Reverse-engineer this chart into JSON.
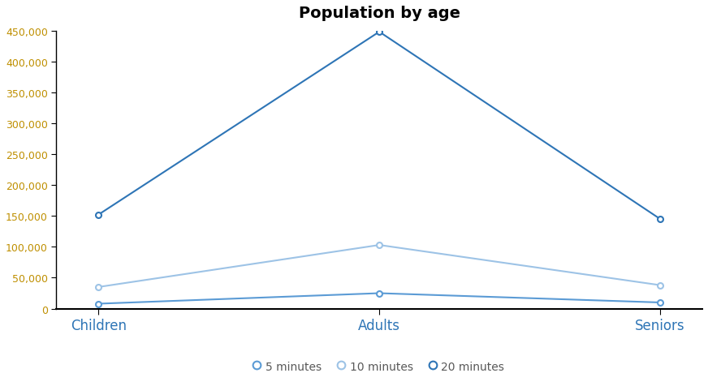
{
  "title": "Population by age",
  "categories": [
    "Children",
    "Adults",
    "Seniors"
  ],
  "series": [
    {
      "label": "5 minutes",
      "values": [
        8000,
        25000,
        10000
      ],
      "color": "#5b9bd5",
      "marker_shape": "o"
    },
    {
      "label": "10 minutes",
      "values": [
        35000,
        103000,
        38000
      ],
      "color": "#9dc3e6",
      "marker_shape": "s"
    },
    {
      "label": "20 minutes",
      "values": [
        152000,
        448000,
        145000
      ],
      "color": "#2e75b6",
      "marker_shape": "o"
    }
  ],
  "ylim": [
    0,
    450000
  ],
  "yticks": [
    0,
    50000,
    100000,
    150000,
    200000,
    250000,
    300000,
    350000,
    400000,
    450000
  ],
  "background_color": "#ffffff",
  "title_fontsize": 14,
  "ytick_label_color": "#bf8f00",
  "xtick_label_color": "#2e75b6",
  "legend_ncol": 3,
  "linewidth": 1.5,
  "markersize": 5
}
